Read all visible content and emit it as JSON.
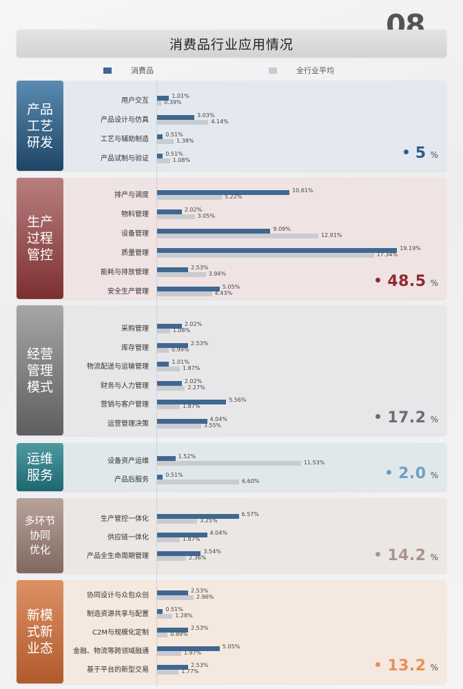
{
  "page_number": "08",
  "title": "消费品行业应用情况",
  "legend": [
    {
      "name": "消费品",
      "color": "#3f6791"
    },
    {
      "name": "全行业平均",
      "color": "#c9cbd0"
    }
  ],
  "chart_data": {
    "type": "bar",
    "orientation": "horizontal",
    "unit": "%",
    "xlim": [
      0,
      20
    ],
    "series_names": [
      "消费品",
      "全行业平均"
    ],
    "groups": [
      {
        "label": [
          "产品",
          "工艺",
          "研发"
        ],
        "total": "5",
        "total_unit": "%",
        "colors": {
          "label_top": "#5a8bb0",
          "label_bottom": "#1e4566",
          "panel": "#e3e9ef",
          "accent": "#2d5d8c"
        },
        "rows": [
          {
            "category": "用户交互",
            "values": [
              1.01,
              0.39
            ],
            "labels": [
              "1.01%",
              "0.39%"
            ]
          },
          {
            "category": "产品设计与仿真",
            "values": [
              3.03,
              4.14
            ],
            "labels": [
              "3.03%",
              "4.14%"
            ]
          },
          {
            "category": "工艺与辅助制造",
            "values": [
              0.51,
              1.38
            ],
            "labels": [
              "0.51%",
              "1.38%"
            ]
          },
          {
            "category": "产品试制与验证",
            "values": [
              0.51,
              1.08
            ],
            "labels": [
              "0.51%",
              "1.08%"
            ]
          }
        ]
      },
      {
        "label": [
          "生产",
          "过程",
          "管控"
        ],
        "total": "48.5",
        "total_unit": "%",
        "colors": {
          "label_top": "#b87f7f",
          "label_bottom": "#7c2f31",
          "panel": "#efe3e3",
          "accent": "#8e2a2e"
        },
        "rows": [
          {
            "category": "排产与调度",
            "values": [
              10.61,
              5.22
            ],
            "labels": [
              "10.61%",
              "5.22%"
            ]
          },
          {
            "category": "物料管理",
            "values": [
              2.02,
              3.05
            ],
            "labels": [
              "2.02%",
              "3.05%"
            ]
          },
          {
            "category": "设备管理",
            "values": [
              9.09,
              12.91
            ],
            "labels": [
              "9.09%",
              "12.91%"
            ]
          },
          {
            "category": "质量管理",
            "values": [
              19.19,
              17.34
            ],
            "labels": [
              "19.19%",
              "17.34%"
            ]
          },
          {
            "category": "能耗与排放管理",
            "values": [
              2.53,
              3.94
            ],
            "labels": [
              "2.53%",
              "3.94%"
            ]
          },
          {
            "category": "安全生产管理",
            "values": [
              5.05,
              4.43
            ],
            "labels": [
              "5.05%",
              "4.43%"
            ]
          }
        ]
      },
      {
        "label": [
          "经营",
          "管理",
          "模式"
        ],
        "total": "17.2",
        "total_unit": "%",
        "colors": {
          "label_top": "#a6a6a8",
          "label_bottom": "#5e5e61",
          "panel": "#e7e7e9",
          "accent": "#6c6c70"
        },
        "rows": [
          {
            "category": "采购管理",
            "values": [
              2.02,
              1.08
            ],
            "labels": [
              "2.02%",
              "1.08%"
            ]
          },
          {
            "category": "库存管理",
            "values": [
              2.53,
              0.99
            ],
            "labels": [
              "2.53%",
              "0.99%"
            ]
          },
          {
            "category": "物流配送与运输管理",
            "values": [
              1.01,
              1.87
            ],
            "labels": [
              "1.01%",
              "1.87%"
            ]
          },
          {
            "category": "财务与人力管理",
            "values": [
              2.02,
              2.27
            ],
            "labels": [
              "2.02%",
              "2.27%"
            ]
          },
          {
            "category": "营销与客户管理",
            "values": [
              5.56,
              1.87
            ],
            "labels": [
              "5.56%",
              "1.87%"
            ]
          },
          {
            "category": "运营管理决策",
            "values": [
              4.04,
              3.55
            ],
            "labels": [
              "4.04%",
              "3.55%"
            ]
          }
        ]
      },
      {
        "label": [
          "运维",
          "服务"
        ],
        "total": "2.0",
        "total_unit": "%",
        "colors": {
          "label_top": "#4e9aa0",
          "label_bottom": "#1f6670",
          "panel": "#e1e8ec",
          "accent": "#6f9fc2"
        },
        "rows": [
          {
            "category": "设备资产运维",
            "values": [
              1.52,
              11.53
            ],
            "labels": [
              "1.52%",
              "11.53%"
            ]
          },
          {
            "category": "产品后服务",
            "values": [
              0.51,
              6.6
            ],
            "labels": [
              "0.51%",
              "6.60%"
            ]
          }
        ]
      },
      {
        "label": [
          "多环节",
          "协同",
          "优化"
        ],
        "total": "14.2",
        "total_unit": "%",
        "colors": {
          "label_top": "#b8a39b",
          "label_bottom": "#80685f",
          "panel": "#ebe7e5",
          "accent": "#a8968c"
        },
        "rows": [
          {
            "category": "生产管控一体化",
            "values": [
              6.57,
              3.25
            ],
            "labels": [
              "6.57%",
              "3.25%"
            ]
          },
          {
            "category": "供应链一体化",
            "values": [
              4.04,
              1.87
            ],
            "labels": [
              "4.04%",
              "1.87%"
            ]
          },
          {
            "category": "产品全生命周期管理",
            "values": [
              3.54,
              2.36
            ],
            "labels": [
              "3.54%",
              "2.36%"
            ]
          }
        ]
      },
      {
        "label": [
          "新模",
          "式新",
          "业态"
        ],
        "total": "13.2",
        "total_unit": "%",
        "colors": {
          "label_top": "#dc9164",
          "label_bottom": "#b05a2c",
          "panel": "#f5e8df",
          "accent": "#e6905a"
        },
        "rows": [
          {
            "category": "协同设计与众包众创",
            "values": [
              2.53,
              2.96
            ],
            "labels": [
              "2.53%",
              "2.96%"
            ]
          },
          {
            "category": "制造资源共享与配置",
            "values": [
              0.51,
              1.28
            ],
            "labels": [
              "0.51%",
              "1.28%"
            ]
          },
          {
            "category": "C2M与规模化定制",
            "values": [
              2.53,
              0.89
            ],
            "labels": [
              "2.53%",
              "0.89%"
            ]
          },
          {
            "category": "金融、物流等跨领域融通",
            "values": [
              5.05,
              1.97
            ],
            "labels": [
              "5.05%",
              "1.97%"
            ]
          },
          {
            "category": "基于平台的新型交易",
            "values": [
              2.53,
              1.77
            ],
            "labels": [
              "2.53%",
              "1.77%"
            ]
          }
        ]
      }
    ]
  }
}
